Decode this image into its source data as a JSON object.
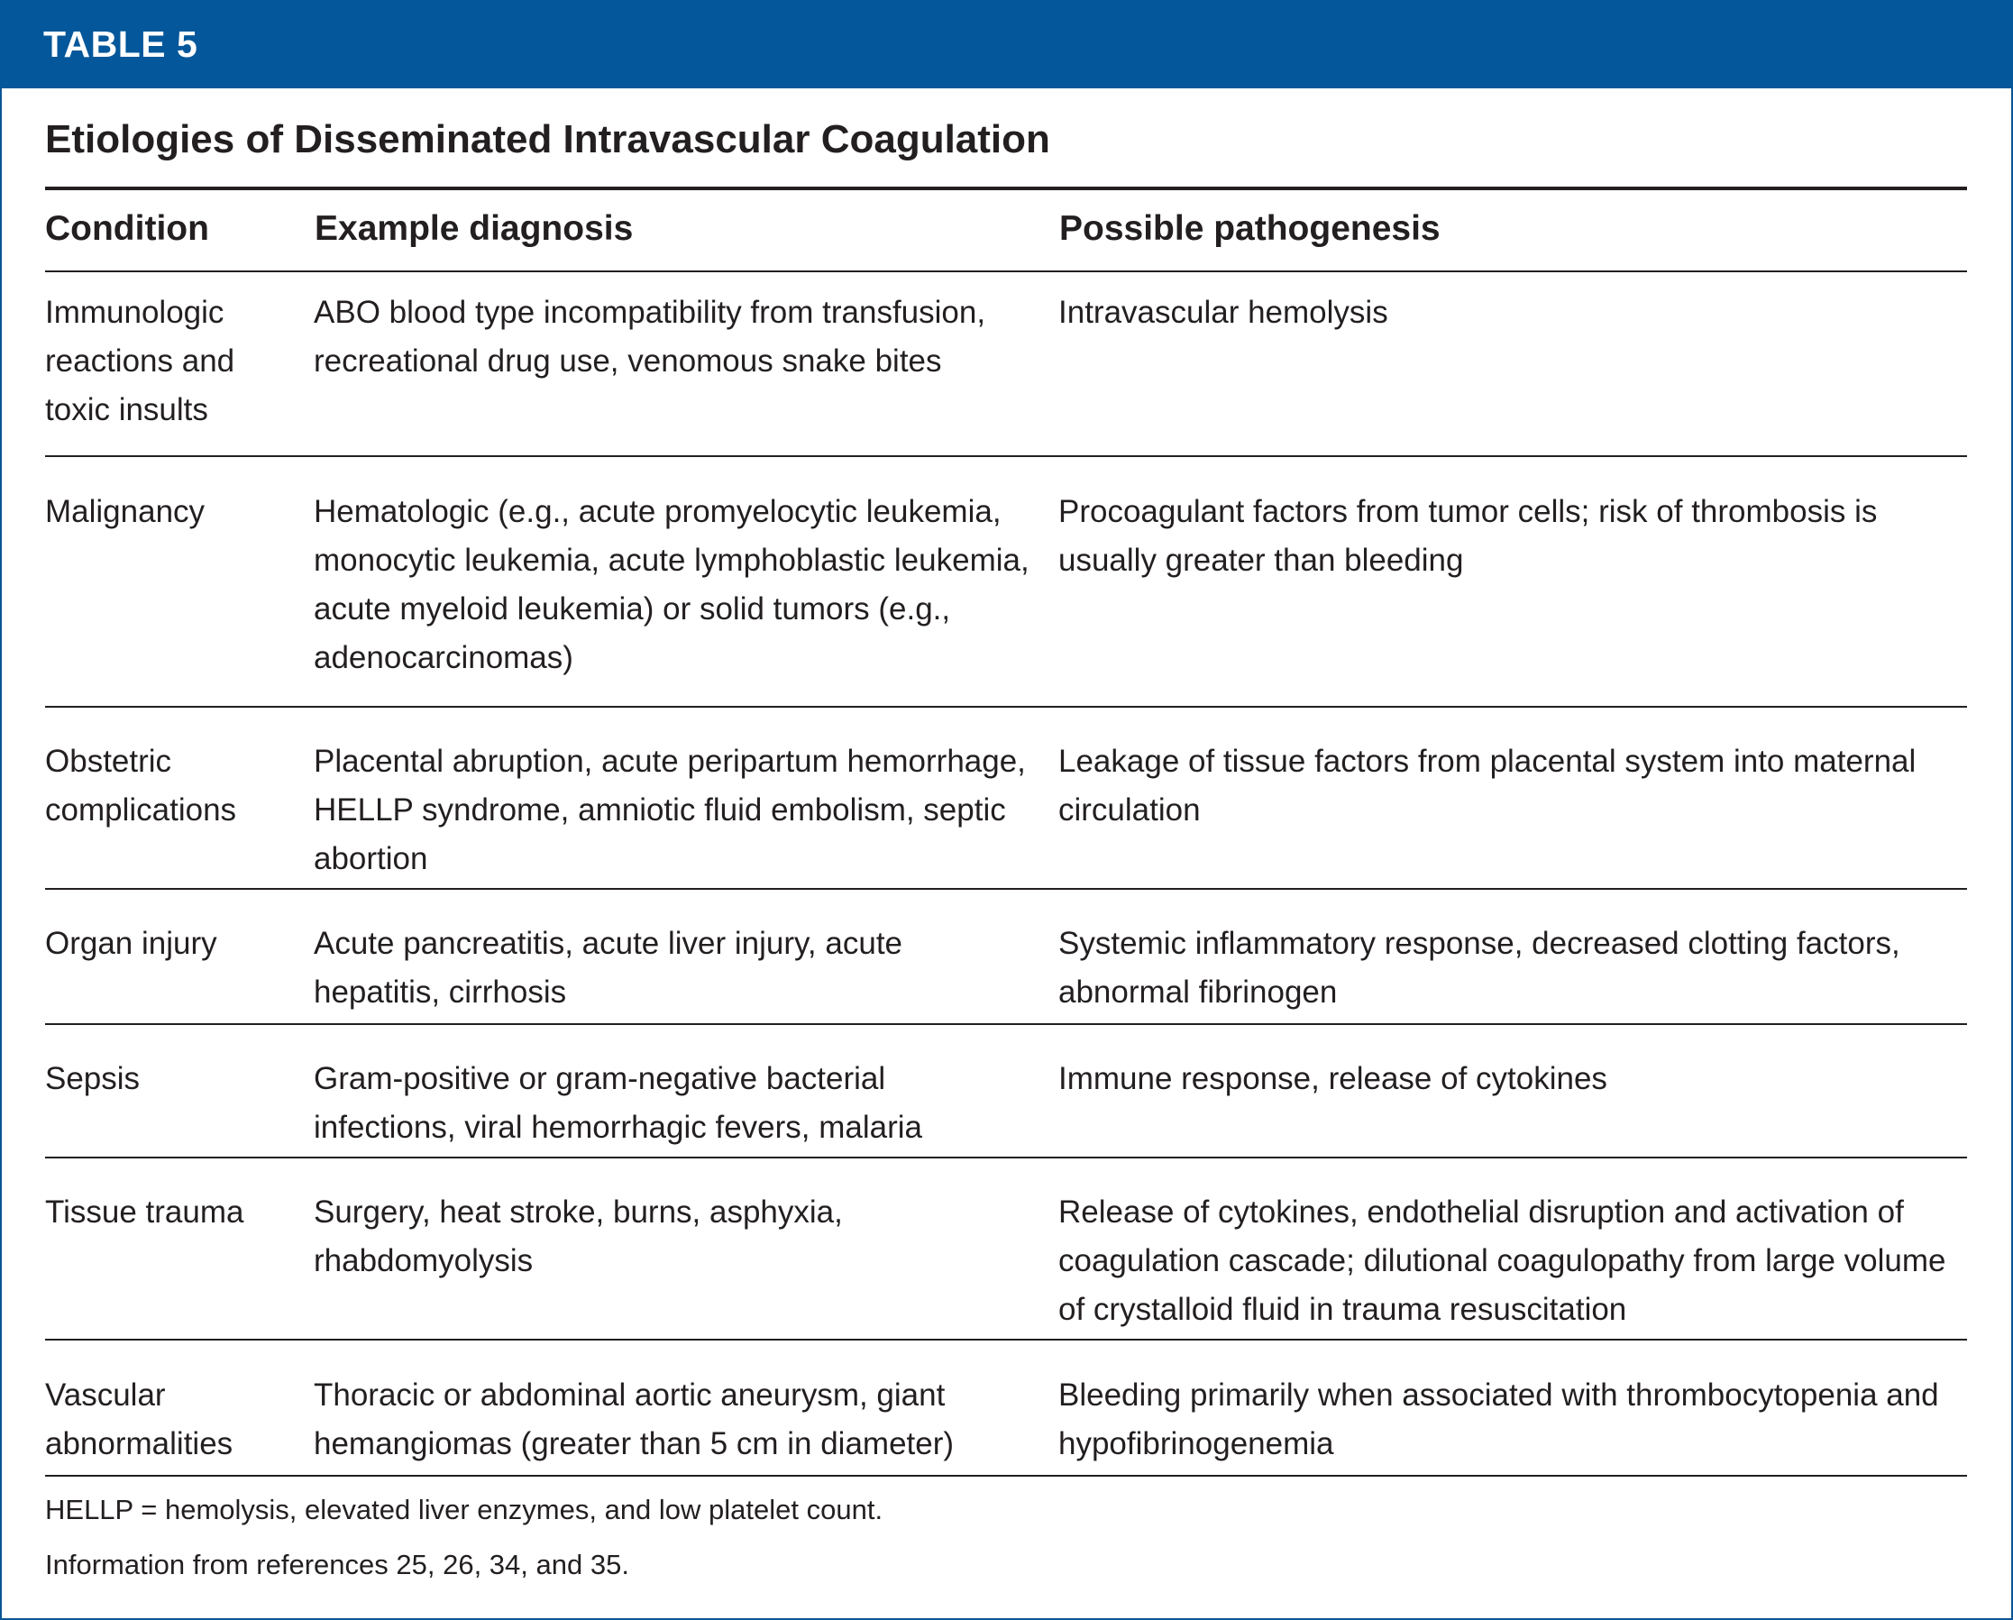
{
  "label": "TABLE 5",
  "title": "Etiologies of Disseminated Intravascular Coagulation",
  "columns": [
    "Condition",
    "Example diagnosis",
    "Possible pathogenesis"
  ],
  "rows": [
    {
      "condition": "Immunologic reactions and toxic insults",
      "diagnosis": "ABO blood type incompatibility from transfusion, recreational drug use, venomous snake bites",
      "pathogenesis": "Intravascular hemolysis"
    },
    {
      "condition": "Malignancy",
      "diagnosis": "Hematologic (e.g., acute promyelocytic leukemia, monocytic leukemia, acute lymphoblastic leukemia, acute myeloid leukemia) or solid tumors (e.g., adenocarcinomas)",
      "pathogenesis": "Procoagulant factors from tumor cells; risk of thrombosis is usually greater than bleeding"
    },
    {
      "condition": "Obstetric complications",
      "diagnosis": "Placental abruption, acute peripartum hemorrhage, HELLP syndrome, amniotic fluid embolism, septic abortion",
      "pathogenesis": "Leakage of tissue factors from placental system into maternal circulation"
    },
    {
      "condition": "Organ injury",
      "diagnosis": "Acute pancreatitis, acute liver injury, acute hepatitis, cirrhosis",
      "pathogenesis": "Systemic inflammatory response, decreased clotting factors, abnormal fibrinogen"
    },
    {
      "condition": "Sepsis",
      "diagnosis": "Gram-positive or gram-negative bacterial infections, viral hemorrhagic fevers, malaria",
      "pathogenesis": "Immune response, release of cytokines"
    },
    {
      "condition": "Tissue trauma",
      "diagnosis": "Surgery, heat stroke, burns, asphyxia, rhabdomyolysis",
      "pathogenesis": "Release of cytokines, endothelial disruption and activation of coagulation cascade; dilutional coagulopathy from large volume of crystalloid fluid in trauma resuscitation"
    },
    {
      "condition": "Vascular abnormalities",
      "diagnosis": "Thoracic or abdominal aortic aneurysm, giant hemangiomas (greater than 5 cm in diameter)",
      "pathogenesis": "Bleeding primarily when associated with thrombocytopenia and hypofibrinogenemia"
    }
  ],
  "footnotes": [
    "HELLP = hemolysis, elevated liver enzymes, and low platelet count.",
    "Information from references 25, 26, 34, and 35."
  ],
  "colors": {
    "band": "#03579a",
    "text": "#231f20"
  }
}
